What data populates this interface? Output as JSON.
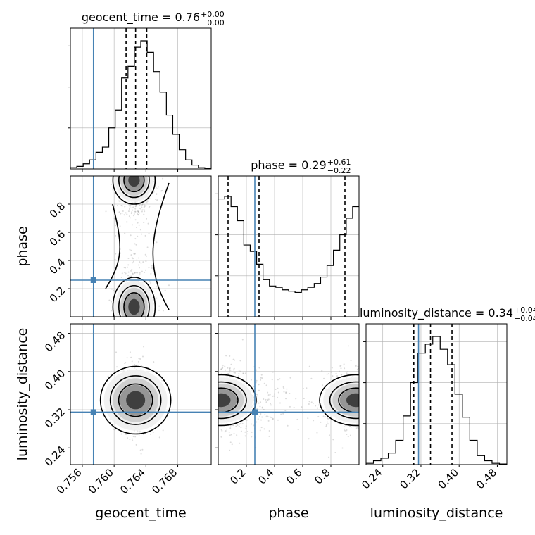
{
  "chart_data": {
    "type": "corner",
    "parameters": [
      "geocent_time",
      "phase",
      "luminosity_distance"
    ],
    "axis_labels": [
      "geocent_time",
      "phase",
      "luminosity_distance"
    ],
    "truths": [
      0.7574,
      0.26,
      0.315
    ],
    "truth_color": "#4682b4",
    "ranges": [
      [
        0.7545,
        0.7722
      ],
      [
        0.0,
        1.0
      ],
      [
        0.205,
        0.5
      ]
    ],
    "ticks": {
      "geocent_time": [
        "0.756",
        "0.760",
        "0.764",
        "0.768"
      ],
      "phase": [
        "0.2",
        "0.4",
        "0.6",
        "0.8"
      ],
      "luminosity_distance": [
        "0.24",
        "0.32",
        "0.40",
        "0.48"
      ]
    },
    "titles": [
      {
        "base": "geocent_time = 0.76",
        "sup": "+0.00",
        "sub": "−0.00"
      },
      {
        "base": "phase = 0.29",
        "sup": "+0.61",
        "sub": "−0.22"
      },
      {
        "base": "luminosity_distance = 0.34",
        "sup": "+0.04",
        "sub": "−0.04"
      }
    ],
    "quantiles": {
      "geocent_time": [
        0.7615,
        0.7627,
        0.7641
      ],
      "phase": [
        0.07,
        0.29,
        0.9
      ],
      "luminosity_distance": [
        0.305,
        0.34,
        0.385
      ]
    },
    "hist_geocent_time": [
      0.01,
      0.02,
      0.04,
      0.07,
      0.13,
      0.17,
      0.32,
      0.46,
      0.71,
      0.8,
      0.95,
      1.0,
      0.91,
      0.76,
      0.6,
      0.42,
      0.27,
      0.15,
      0.07,
      0.03,
      0.01,
      0.005
    ],
    "hist_phase": [
      0.92,
      0.94,
      0.86,
      0.75,
      0.56,
      0.51,
      0.41,
      0.29,
      0.24,
      0.23,
      0.21,
      0.2,
      0.19,
      0.21,
      0.23,
      0.26,
      0.31,
      0.4,
      0.52,
      0.64,
      0.77,
      0.86
    ],
    "hist_luminosity_distance": [
      0.01,
      0.03,
      0.05,
      0.09,
      0.19,
      0.38,
      0.64,
      0.87,
      0.94,
      1.0,
      0.9,
      0.78,
      0.55,
      0.37,
      0.19,
      0.07,
      0.03,
      0.01,
      0.005
    ]
  }
}
